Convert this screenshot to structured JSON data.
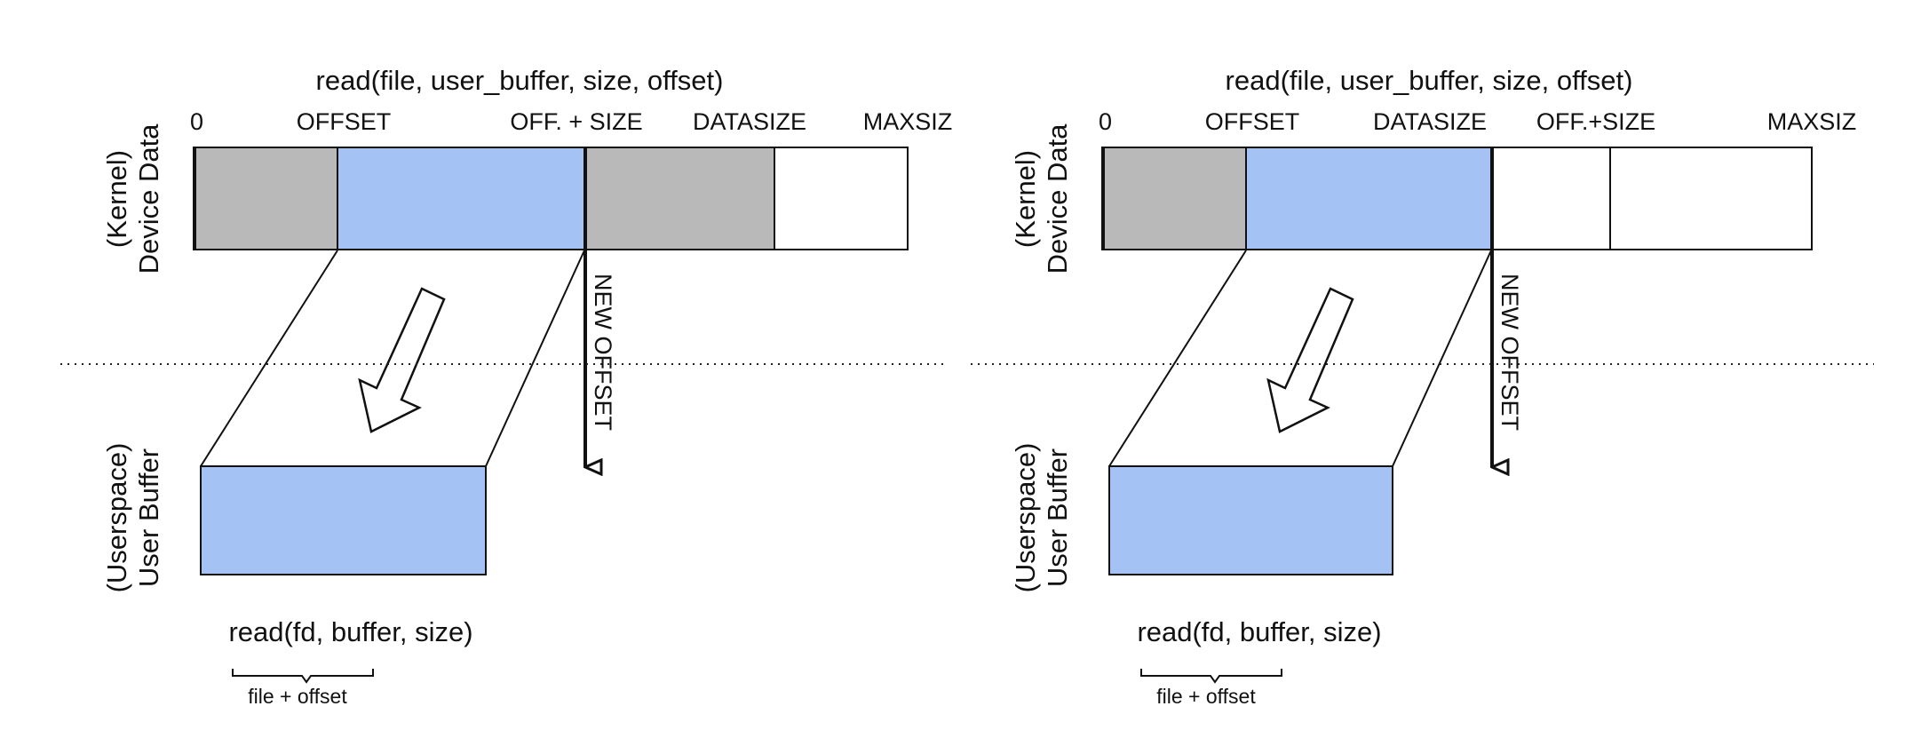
{
  "colors": {
    "kernel_gray": "#b9b9b9",
    "buffer_blue": "#a4c2f4",
    "outline": "#111111",
    "background": "#ffffff"
  },
  "panels": [
    {
      "kernel_call": "read(file, user_buffer, size, offset)",
      "markers": [
        "0",
        "OFFSET",
        "OFF. + SIZE",
        "DATASIZE",
        "MAXSIZ"
      ],
      "device_data_label_line1": "(Kernel)",
      "device_data_label_line2": "Device Data",
      "user_buffer_label_line1": "(Userspace)",
      "user_buffer_label_line2": "User Buffer",
      "new_offset_label": "NEW OFFSET",
      "user_call": "read(fd, buffer, size)",
      "brace_label": "file + offset"
    },
    {
      "kernel_call": "read(file, user_buffer, size, offset)",
      "markers": [
        "0",
        "OFFSET",
        "DATASIZE",
        "OFF.+SIZE",
        "MAXSIZ"
      ],
      "device_data_label_line1": "(Kernel)",
      "device_data_label_line2": "Device Data",
      "user_buffer_label_line1": "(Userspace)",
      "user_buffer_label_line2": "User Buffer",
      "new_offset_label": "NEW OFFSET",
      "user_call": "read(fd, buffer, size)",
      "brace_label": "file + offset"
    }
  ]
}
